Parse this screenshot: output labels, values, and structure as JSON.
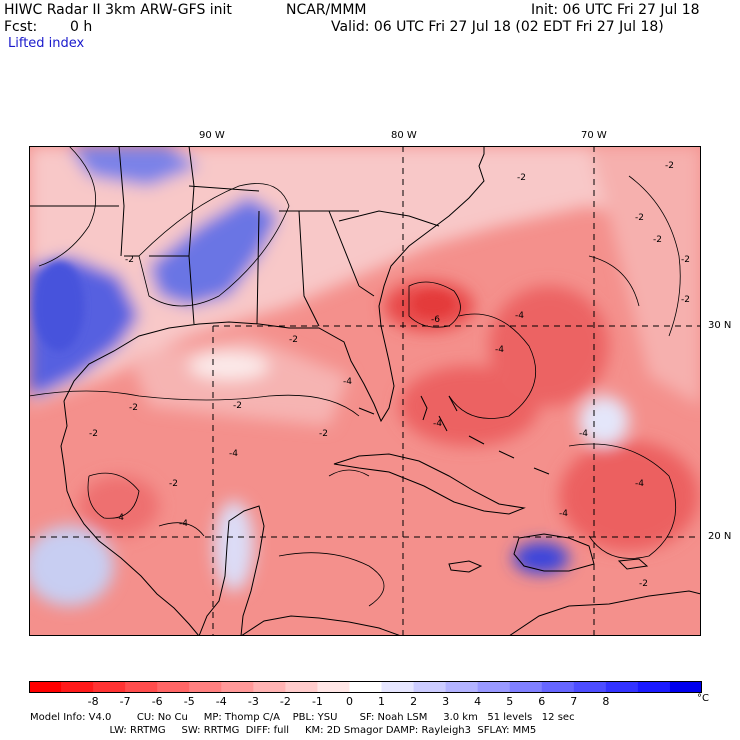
{
  "header": {
    "model": "HIWC Radar II 3km ARW-GFS init",
    "org": "NCAR/MMM",
    "init": "Init: 06 UTC Fri 27 Jul 18",
    "fcst_label": "Fcst:",
    "fcst_value": "0 h",
    "valid": "Valid: 06 UTC Fri 27 Jul 18 (02 EDT Fri 27 Jul 18)",
    "field": "Lifted index"
  },
  "map": {
    "lon_labels": [
      "90 W",
      "80 W",
      "70 W"
    ],
    "lat_labels": [
      "30 N",
      "20 N"
    ],
    "contour_labels": [
      "-2",
      "-4",
      "-6"
    ],
    "colors": {
      "neg_strong": "#e8282e",
      "neg_light": "#f8c8c8",
      "zero": "#ffffff",
      "pos_light": "#c8ccf4",
      "pos_strong": "#3c46dc",
      "ocean_bg": "#f0807e"
    }
  },
  "colorbar": {
    "ticks": [
      "-8",
      "-7",
      "-6",
      "-5",
      "-4",
      "-3",
      "-2",
      "-1",
      "0",
      "1",
      "2",
      "3",
      "4",
      "5",
      "6",
      "7",
      "8"
    ],
    "unit": "°C",
    "colors": [
      "#ff0000",
      "#ff1a1a",
      "#ff3333",
      "#ff4d4d",
      "#ff6666",
      "#ff8080",
      "#ff9999",
      "#ffb3b3",
      "#ffcccc",
      "#ffe6e6",
      "#ffffff",
      "#e6e6ff",
      "#ccccff",
      "#b3b3ff",
      "#9999ff",
      "#8080ff",
      "#6666ff",
      "#4d4dff",
      "#3333ff",
      "#1a1aff",
      "#0000ee"
    ]
  },
  "info": {
    "line1": "Model Info: V4.0        CU: No Cu     MP: Thomp C/A    PBL: YSU       SF: Noah LSM     3.0 km   51 levels   12 sec",
    "line2": "                         LW: RRTMG     SW: RRTMG  DIFF: full     KM: 2D Smagor DAMP: Rayleigh3  SFLAY: MM5"
  }
}
